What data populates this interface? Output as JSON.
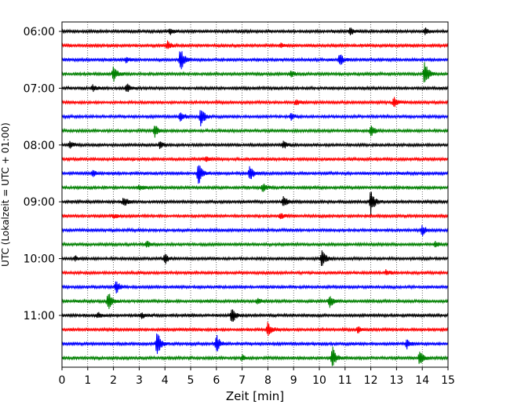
{
  "chart_data": {
    "type": "line",
    "chart_kind": "helicorder",
    "xlabel": "Zeit  [min]",
    "ylabel": "UTC (Lokalzeit = UTC + 01:00)",
    "xlim": [
      0,
      15
    ],
    "x_ticks": [
      0,
      1,
      2,
      3,
      4,
      5,
      6,
      7,
      8,
      9,
      10,
      11,
      12,
      13,
      14,
      15
    ],
    "y_tick_labels": [
      "06:00",
      "07:00",
      "08:00",
      "09:00",
      "10:00",
      "11:00"
    ],
    "y_tick_rows": [
      0,
      4,
      8,
      12,
      16,
      20
    ],
    "grid": "vertical-dotted",
    "minutes_per_line": 15,
    "trace_colors": [
      "#000000",
      "#ff0000",
      "#0000ff",
      "#008000"
    ],
    "rows": [
      {
        "events": [
          {
            "t": 4.2,
            "a": 0.7
          },
          {
            "t": 11.2,
            "a": 0.7
          },
          {
            "t": 14.1,
            "a": 0.6
          }
        ]
      },
      {
        "events": [
          {
            "t": 4.1,
            "a": 0.9
          },
          {
            "t": 8.5,
            "a": 0.5
          }
        ]
      },
      {
        "events": [
          {
            "t": 4.6,
            "a": 2.4
          },
          {
            "t": 10.8,
            "a": 1.2
          },
          {
            "t": 2.5,
            "a": 0.5
          }
        ]
      },
      {
        "events": [
          {
            "t": 2.0,
            "a": 1.6
          },
          {
            "t": 14.1,
            "a": 2.6
          },
          {
            "t": 8.9,
            "a": 0.6
          }
        ]
      },
      {
        "events": [
          {
            "t": 2.5,
            "a": 0.9
          },
          {
            "t": 1.2,
            "a": 0.6
          }
        ]
      },
      {
        "events": [
          {
            "t": 12.9,
            "a": 1.0
          },
          {
            "t": 9.1,
            "a": 0.6
          }
        ]
      },
      {
        "events": [
          {
            "t": 5.4,
            "a": 1.9
          },
          {
            "t": 4.6,
            "a": 1.0
          },
          {
            "t": 8.9,
            "a": 0.6
          }
        ]
      },
      {
        "events": [
          {
            "t": 3.6,
            "a": 1.2
          },
          {
            "t": 12.0,
            "a": 1.3
          }
        ]
      },
      {
        "events": [
          {
            "t": 0.3,
            "a": 0.6
          },
          {
            "t": 3.8,
            "a": 0.7
          },
          {
            "t": 8.6,
            "a": 0.7
          }
        ]
      },
      {
        "events": [
          {
            "t": 5.6,
            "a": 0.5
          }
        ]
      },
      {
        "events": [
          {
            "t": 5.3,
            "a": 2.2
          },
          {
            "t": 7.3,
            "a": 1.5
          },
          {
            "t": 1.2,
            "a": 0.6
          }
        ]
      },
      {
        "events": [
          {
            "t": 7.8,
            "a": 0.8
          },
          {
            "t": 3.0,
            "a": 0.5
          }
        ]
      },
      {
        "events": [
          {
            "t": 12.0,
            "a": 2.3
          },
          {
            "t": 8.6,
            "a": 1.2
          },
          {
            "t": 2.4,
            "a": 0.9
          }
        ]
      },
      {
        "events": [
          {
            "t": 8.5,
            "a": 0.5
          },
          {
            "t": 2.0,
            "a": 0.4
          }
        ]
      },
      {
        "events": [
          {
            "t": 14.0,
            "a": 1.0
          }
        ]
      },
      {
        "events": [
          {
            "t": 3.3,
            "a": 0.6
          },
          {
            "t": 14.5,
            "a": 0.6
          }
        ]
      },
      {
        "events": [
          {
            "t": 4.0,
            "a": 1.0
          },
          {
            "t": 10.1,
            "a": 1.8
          },
          {
            "t": 0.5,
            "a": 0.5
          }
        ]
      },
      {
        "events": [
          {
            "t": 12.6,
            "a": 0.5
          }
        ]
      },
      {
        "events": [
          {
            "t": 2.1,
            "a": 1.3
          }
        ]
      },
      {
        "events": [
          {
            "t": 1.8,
            "a": 1.9
          },
          {
            "t": 10.4,
            "a": 1.1
          },
          {
            "t": 7.6,
            "a": 0.6
          }
        ]
      },
      {
        "events": [
          {
            "t": 6.6,
            "a": 1.7
          },
          {
            "t": 1.4,
            "a": 0.5
          },
          {
            "t": 3.1,
            "a": 0.5
          }
        ]
      },
      {
        "events": [
          {
            "t": 8.0,
            "a": 1.4
          },
          {
            "t": 11.5,
            "a": 0.6
          }
        ]
      },
      {
        "events": [
          {
            "t": 3.7,
            "a": 2.3
          },
          {
            "t": 6.0,
            "a": 1.7
          },
          {
            "t": 13.4,
            "a": 0.9
          }
        ]
      },
      {
        "events": [
          {
            "t": 10.5,
            "a": 2.3
          },
          {
            "t": 13.9,
            "a": 1.4
          },
          {
            "t": 7.0,
            "a": 0.5
          }
        ]
      }
    ]
  }
}
